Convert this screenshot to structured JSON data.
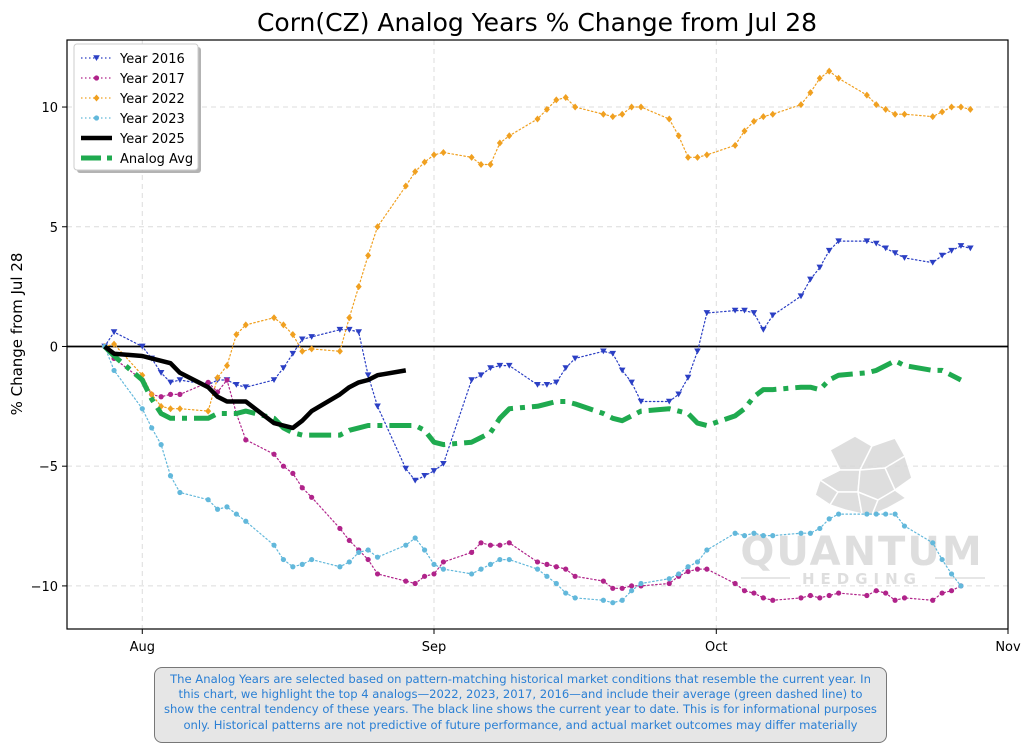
{
  "chart_data": {
    "type": "line",
    "title": "Corn(CZ) Analog Years % Change from Jul 28",
    "xlabel": "",
    "ylabel": "% Change from Jul 28",
    "x_tick_labels": [
      "Aug",
      "Sep",
      "Oct",
      "Nov"
    ],
    "x_tick_dates": [
      "2025-08-01",
      "2025-09-01",
      "2025-10-01",
      "2025-11-01"
    ],
    "yticks": [
      -10,
      -5,
      0,
      5,
      10
    ],
    "xlim": [
      "2025-07-24",
      "2025-11-01"
    ],
    "ylim": [
      -11.8,
      12.8
    ],
    "grid": true,
    "legend_position": "top-left",
    "reference_line": 0,
    "series": [
      {
        "name": "Year 2016",
        "color": "#2b3fc4",
        "style": "dotted",
        "marker": "triangle-down",
        "x": [
          "2025-07-28",
          "2025-07-29",
          "2025-08-01",
          "2025-08-02",
          "2025-08-03",
          "2025-08-04",
          "2025-08-05",
          "2025-08-08",
          "2025-08-09",
          "2025-08-10",
          "2025-08-11",
          "2025-08-12",
          "2025-08-15",
          "2025-08-16",
          "2025-08-17",
          "2025-08-18",
          "2025-08-19",
          "2025-08-22",
          "2025-08-23",
          "2025-08-24",
          "2025-08-25",
          "2025-08-26",
          "2025-08-29",
          "2025-08-30",
          "2025-08-31",
          "2025-09-01",
          "2025-09-02",
          "2025-09-05",
          "2025-09-06",
          "2025-09-07",
          "2025-09-08",
          "2025-09-09",
          "2025-09-12",
          "2025-09-13",
          "2025-09-14",
          "2025-09-15",
          "2025-09-16",
          "2025-09-19",
          "2025-09-20",
          "2025-09-21",
          "2025-09-22",
          "2025-09-23",
          "2025-09-26",
          "2025-09-27",
          "2025-09-28",
          "2025-09-29",
          "2025-09-30",
          "2025-10-03",
          "2025-10-04",
          "2025-10-05",
          "2025-10-06",
          "2025-10-07",
          "2025-10-10",
          "2025-10-11",
          "2025-10-12",
          "2025-10-13",
          "2025-10-14",
          "2025-10-17",
          "2025-10-18",
          "2025-10-19",
          "2025-10-20",
          "2025-10-21",
          "2025-10-24",
          "2025-10-25",
          "2025-10-26",
          "2025-10-27",
          "2025-10-28"
        ],
        "y": [
          0,
          0.6,
          0.0,
          -0.5,
          -1.1,
          -1.5,
          -1.4,
          -1.6,
          -1.4,
          -1.4,
          -1.6,
          -1.7,
          -1.4,
          -0.9,
          -0.3,
          0.3,
          0.4,
          0.7,
          0.7,
          0.6,
          -1.2,
          -2.5,
          -5.1,
          -5.6,
          -5.4,
          -5.2,
          -4.9,
          -1.4,
          -1.2,
          -0.9,
          -0.8,
          -0.8,
          -1.6,
          -1.6,
          -1.5,
          -0.9,
          -0.5,
          -0.2,
          -0.3,
          -1.0,
          -1.5,
          -2.3,
          -2.3,
          -2.0,
          -1.3,
          -0.2,
          1.4,
          1.5,
          1.5,
          1.4,
          0.7,
          1.3,
          2.1,
          2.8,
          3.3,
          4.0,
          4.4,
          4.4,
          4.3,
          4.1,
          3.9,
          3.7,
          3.5,
          3.8,
          4.0,
          4.2,
          4.1
        ]
      },
      {
        "name": "Year 2017",
        "color": "#b0238a",
        "style": "dotted",
        "marker": "circle",
        "x": [
          "2025-07-28",
          "2025-07-29",
          "2025-08-01",
          "2025-08-02",
          "2025-08-03",
          "2025-08-04",
          "2025-08-05",
          "2025-08-08",
          "2025-08-09",
          "2025-08-10",
          "2025-08-11",
          "2025-08-12",
          "2025-08-15",
          "2025-08-16",
          "2025-08-17",
          "2025-08-18",
          "2025-08-19",
          "2025-08-22",
          "2025-08-23",
          "2025-08-24",
          "2025-08-25",
          "2025-08-26",
          "2025-08-29",
          "2025-08-30",
          "2025-08-31",
          "2025-09-01",
          "2025-09-02",
          "2025-09-05",
          "2025-09-06",
          "2025-09-07",
          "2025-09-08",
          "2025-09-09",
          "2025-09-12",
          "2025-09-13",
          "2025-09-14",
          "2025-09-15",
          "2025-09-16",
          "2025-09-19",
          "2025-09-20",
          "2025-09-21",
          "2025-09-22",
          "2025-09-23",
          "2025-09-26",
          "2025-09-27",
          "2025-09-28",
          "2025-09-29",
          "2025-09-30",
          "2025-10-03",
          "2025-10-04",
          "2025-10-05",
          "2025-10-06",
          "2025-10-07",
          "2025-10-10",
          "2025-10-11",
          "2025-10-12",
          "2025-10-13",
          "2025-10-14",
          "2025-10-17",
          "2025-10-18",
          "2025-10-19",
          "2025-10-20",
          "2025-10-21",
          "2025-10-24",
          "2025-10-25",
          "2025-10-26",
          "2025-10-27"
        ],
        "y": [
          0,
          -0.5,
          -1.4,
          -2.0,
          -2.1,
          -2.0,
          -2.0,
          -1.5,
          -1.9,
          -1.4,
          -2.8,
          -3.9,
          -4.5,
          -5.0,
          -5.3,
          -5.9,
          -6.3,
          -7.6,
          -8.1,
          -8.5,
          -8.9,
          -9.5,
          -9.8,
          -9.9,
          -9.6,
          -9.5,
          -9.0,
          -8.6,
          -8.2,
          -8.3,
          -8.3,
          -8.2,
          -9.0,
          -9.1,
          -9.2,
          -9.3,
          -9.6,
          -9.8,
          -10.1,
          -10.1,
          -10.0,
          -10.0,
          -9.9,
          -9.6,
          -9.4,
          -9.3,
          -9.3,
          -9.9,
          -10.2,
          -10.3,
          -10.5,
          -10.6,
          -10.5,
          -10.4,
          -10.5,
          -10.4,
          -10.3,
          -10.4,
          -10.2,
          -10.3,
          -10.6,
          -10.5,
          -10.6,
          -10.3,
          -10.2,
          -10.0
        ]
      },
      {
        "name": "Year 2022",
        "color": "#f0a020",
        "style": "dotted",
        "marker": "diamond",
        "x": [
          "2025-07-28",
          "2025-07-29",
          "2025-08-01",
          "2025-08-02",
          "2025-08-03",
          "2025-08-04",
          "2025-08-05",
          "2025-08-08",
          "2025-08-09",
          "2025-08-10",
          "2025-08-11",
          "2025-08-12",
          "2025-08-15",
          "2025-08-16",
          "2025-08-17",
          "2025-08-18",
          "2025-08-19",
          "2025-08-22",
          "2025-08-23",
          "2025-08-24",
          "2025-08-25",
          "2025-08-26",
          "2025-08-29",
          "2025-08-30",
          "2025-08-31",
          "2025-09-01",
          "2025-09-02",
          "2025-09-05",
          "2025-09-06",
          "2025-09-07",
          "2025-09-08",
          "2025-09-09",
          "2025-09-12",
          "2025-09-13",
          "2025-09-14",
          "2025-09-15",
          "2025-09-16",
          "2025-09-19",
          "2025-09-20",
          "2025-09-21",
          "2025-09-22",
          "2025-09-23",
          "2025-09-26",
          "2025-09-27",
          "2025-09-28",
          "2025-09-29",
          "2025-09-30",
          "2025-10-03",
          "2025-10-04",
          "2025-10-05",
          "2025-10-06",
          "2025-10-07",
          "2025-10-10",
          "2025-10-11",
          "2025-10-12",
          "2025-10-13",
          "2025-10-14",
          "2025-10-17",
          "2025-10-18",
          "2025-10-19",
          "2025-10-20",
          "2025-10-21",
          "2025-10-24",
          "2025-10-25",
          "2025-10-26",
          "2025-10-27",
          "2025-10-28"
        ],
        "y": [
          0,
          0.1,
          -1.2,
          -2.0,
          -2.5,
          -2.6,
          -2.6,
          -2.7,
          -1.3,
          -0.8,
          0.5,
          0.9,
          1.2,
          0.9,
          0.5,
          -0.2,
          -0.1,
          -0.2,
          1.2,
          2.5,
          3.8,
          5.0,
          6.7,
          7.3,
          7.7,
          8.0,
          8.1,
          7.9,
          7.6,
          7.6,
          8.5,
          8.8,
          9.5,
          9.9,
          10.3,
          10.4,
          10.0,
          9.7,
          9.6,
          9.7,
          10.0,
          10.0,
          9.5,
          8.8,
          7.9,
          7.9,
          8.0,
          8.4,
          9.0,
          9.4,
          9.6,
          9.7,
          10.1,
          10.6,
          11.2,
          11.5,
          11.2,
          10.5,
          10.1,
          9.9,
          9.7,
          9.7,
          9.6,
          9.8,
          10.0,
          10.0,
          9.9
        ]
      },
      {
        "name": "Year 2023",
        "color": "#62b8db",
        "style": "dotted",
        "marker": "circle",
        "x": [
          "2025-07-28",
          "2025-07-29",
          "2025-08-01",
          "2025-08-02",
          "2025-08-03",
          "2025-08-04",
          "2025-08-05",
          "2025-08-08",
          "2025-08-09",
          "2025-08-10",
          "2025-08-11",
          "2025-08-12",
          "2025-08-15",
          "2025-08-16",
          "2025-08-17",
          "2025-08-18",
          "2025-08-19",
          "2025-08-22",
          "2025-08-23",
          "2025-08-24",
          "2025-08-25",
          "2025-08-26",
          "2025-08-29",
          "2025-08-30",
          "2025-08-31",
          "2025-09-01",
          "2025-09-02",
          "2025-09-05",
          "2025-09-06",
          "2025-09-07",
          "2025-09-08",
          "2025-09-09",
          "2025-09-12",
          "2025-09-13",
          "2025-09-14",
          "2025-09-15",
          "2025-09-16",
          "2025-09-19",
          "2025-09-20",
          "2025-09-21",
          "2025-09-22",
          "2025-09-23",
          "2025-09-26",
          "2025-09-27",
          "2025-09-28",
          "2025-09-29",
          "2025-09-30",
          "2025-10-03",
          "2025-10-04",
          "2025-10-05",
          "2025-10-06",
          "2025-10-07",
          "2025-10-10",
          "2025-10-11",
          "2025-10-12",
          "2025-10-13",
          "2025-10-14",
          "2025-10-17",
          "2025-10-18",
          "2025-10-19",
          "2025-10-20",
          "2025-10-21",
          "2025-10-24",
          "2025-10-25",
          "2025-10-26",
          "2025-10-27"
        ],
        "y": [
          0,
          -1.0,
          -2.6,
          -3.4,
          -4.1,
          -5.4,
          -6.1,
          -6.4,
          -6.8,
          -6.7,
          -7.0,
          -7.3,
          -8.3,
          -8.9,
          -9.2,
          -9.1,
          -8.9,
          -9.2,
          -9.0,
          -8.6,
          -8.5,
          -8.8,
          -8.3,
          -8.0,
          -8.5,
          -9.1,
          -9.3,
          -9.5,
          -9.3,
          -9.1,
          -8.9,
          -8.9,
          -9.3,
          -9.6,
          -9.9,
          -10.3,
          -10.5,
          -10.6,
          -10.7,
          -10.6,
          -10.2,
          -9.9,
          -9.7,
          -9.5,
          -9.2,
          -9.0,
          -8.5,
          -7.8,
          -7.9,
          -7.8,
          -7.9,
          -7.9,
          -7.8,
          -7.8,
          -7.6,
          -7.2,
          -7.0,
          -7.0,
          -7.0,
          -7.0,
          -7.0,
          -7.5,
          -8.2,
          -8.9,
          -9.5,
          -10.0
        ]
      },
      {
        "name": "Year 2025",
        "color": "#000000",
        "style": "solid",
        "marker": "none",
        "x": [
          "2025-07-28",
          "2025-07-29",
          "2025-08-01",
          "2025-08-02",
          "2025-08-03",
          "2025-08-04",
          "2025-08-05",
          "2025-08-08",
          "2025-08-09",
          "2025-08-10",
          "2025-08-11",
          "2025-08-12",
          "2025-08-15",
          "2025-08-16",
          "2025-08-17",
          "2025-08-18",
          "2025-08-19",
          "2025-08-22",
          "2025-08-23",
          "2025-08-24",
          "2025-08-25",
          "2025-08-26",
          "2025-08-29"
        ],
        "y": [
          0,
          -0.3,
          -0.4,
          -0.5,
          -0.6,
          -0.7,
          -1.1,
          -1.7,
          -2.1,
          -2.3,
          -2.3,
          -2.3,
          -3.2,
          -3.3,
          -3.4,
          -3.1,
          -2.7,
          -2.0,
          -1.7,
          -1.5,
          -1.4,
          -1.2,
          -1.0
        ]
      },
      {
        "name": "Analog Avg",
        "color": "#1faa4f",
        "style": "dashdot",
        "marker": "none",
        "x": [
          "2025-07-28",
          "2025-07-29",
          "2025-08-01",
          "2025-08-02",
          "2025-08-03",
          "2025-08-04",
          "2025-08-05",
          "2025-08-08",
          "2025-08-09",
          "2025-08-10",
          "2025-08-11",
          "2025-08-12",
          "2025-08-15",
          "2025-08-16",
          "2025-08-17",
          "2025-08-18",
          "2025-08-19",
          "2025-08-22",
          "2025-08-23",
          "2025-08-24",
          "2025-08-25",
          "2025-08-26",
          "2025-08-29",
          "2025-08-30",
          "2025-08-31",
          "2025-09-01",
          "2025-09-02",
          "2025-09-05",
          "2025-09-06",
          "2025-09-07",
          "2025-09-08",
          "2025-09-09",
          "2025-09-12",
          "2025-09-13",
          "2025-09-14",
          "2025-09-15",
          "2025-09-16",
          "2025-09-19",
          "2025-09-20",
          "2025-09-21",
          "2025-09-22",
          "2025-09-23",
          "2025-09-26",
          "2025-09-27",
          "2025-09-28",
          "2025-09-29",
          "2025-09-30",
          "2025-10-03",
          "2025-10-04",
          "2025-10-05",
          "2025-10-06",
          "2025-10-07",
          "2025-10-10",
          "2025-10-11",
          "2025-10-12",
          "2025-10-13",
          "2025-10-14",
          "2025-10-17",
          "2025-10-18",
          "2025-10-19",
          "2025-10-20",
          "2025-10-21",
          "2025-10-24",
          "2025-10-25",
          "2025-10-26",
          "2025-10-27"
        ],
        "y": [
          0,
          -0.4,
          -1.4,
          -2.2,
          -2.8,
          -3.0,
          -3.0,
          -3.0,
          -2.8,
          -2.8,
          -2.8,
          -2.7,
          -3.0,
          -3.4,
          -3.6,
          -3.7,
          -3.7,
          -3.7,
          -3.5,
          -3.4,
          -3.3,
          -3.3,
          -3.3,
          -3.3,
          -3.5,
          -4.0,
          -4.1,
          -4.0,
          -3.8,
          -3.6,
          -3.0,
          -2.6,
          -2.5,
          -2.4,
          -2.3,
          -2.3,
          -2.4,
          -2.8,
          -3.0,
          -3.1,
          -2.9,
          -2.7,
          -2.6,
          -2.7,
          -2.8,
          -3.2,
          -3.3,
          -2.9,
          -2.6,
          -2.1,
          -1.8,
          -1.8,
          -1.7,
          -1.7,
          -1.8,
          -1.4,
          -1.2,
          -1.1,
          -1.0,
          -0.8,
          -0.6,
          -0.8,
          -1.0,
          -1.0,
          -1.2,
          -1.4
        ]
      }
    ]
  },
  "watermark": {
    "name": "QUANTUM",
    "subtitle": "HEDGING"
  },
  "note": "The Analog Years are selected based on pattern-matching historical market conditions that resemble the current year. In this chart, we highlight the top 4 analogs—2022, 2023, 2017, 2016—and include their average (green dashed line) to show the central tendency of these years. The black line shows the current year to date. This is for informational purposes only. Historical patterns are not predictive of future performance, and actual market outcomes may differ materially"
}
